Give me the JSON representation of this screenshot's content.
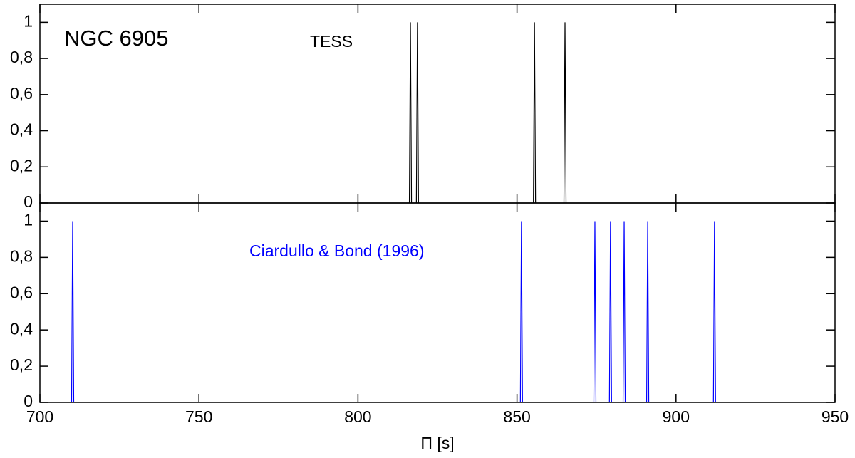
{
  "chart_data": [
    {
      "type": "stem",
      "annotations": [
        "NGC 6905",
        "TESS"
      ],
      "series": [
        {
          "name": "TESS",
          "color": "#000000",
          "x": [
            816.5,
            818.7,
            855.5,
            865.1
          ],
          "values": [
            1,
            1,
            1,
            1
          ]
        }
      ],
      "xlim": [
        700,
        950
      ],
      "ylim": [
        0,
        1.1
      ],
      "yticks": [
        0,
        {
          "value": 0.2,
          "label": "0,2"
        },
        {
          "value": 0.4,
          "label": "0,4"
        },
        {
          "value": 0.6,
          "label": "0,6"
        },
        {
          "value": 0.8,
          "label": "0,8"
        },
        1
      ]
    },
    {
      "type": "stem",
      "annotations": [
        "Ciardullo & Bond  (1996)"
      ],
      "series": [
        {
          "name": "Ciardullo & Bond (1996)",
          "color": "#0000ff",
          "x": [
            710.3,
            851.4,
            874.5,
            879.4,
            883.7,
            891.1,
            912.1
          ],
          "values": [
            1,
            1,
            1,
            1,
            1,
            1,
            1
          ]
        }
      ],
      "xlabel": "Π [s]",
      "xlim": [
        700,
        950
      ],
      "ylim": [
        0,
        1.1
      ],
      "xticks": [
        700,
        750,
        800,
        850,
        900,
        950
      ],
      "yticks": [
        0,
        {
          "value": 0.2,
          "label": "0,2"
        },
        {
          "value": 0.4,
          "label": "0,4"
        },
        {
          "value": 0.6,
          "label": "0,6"
        },
        {
          "value": 0.8,
          "label": "0,8"
        },
        1
      ]
    }
  ]
}
